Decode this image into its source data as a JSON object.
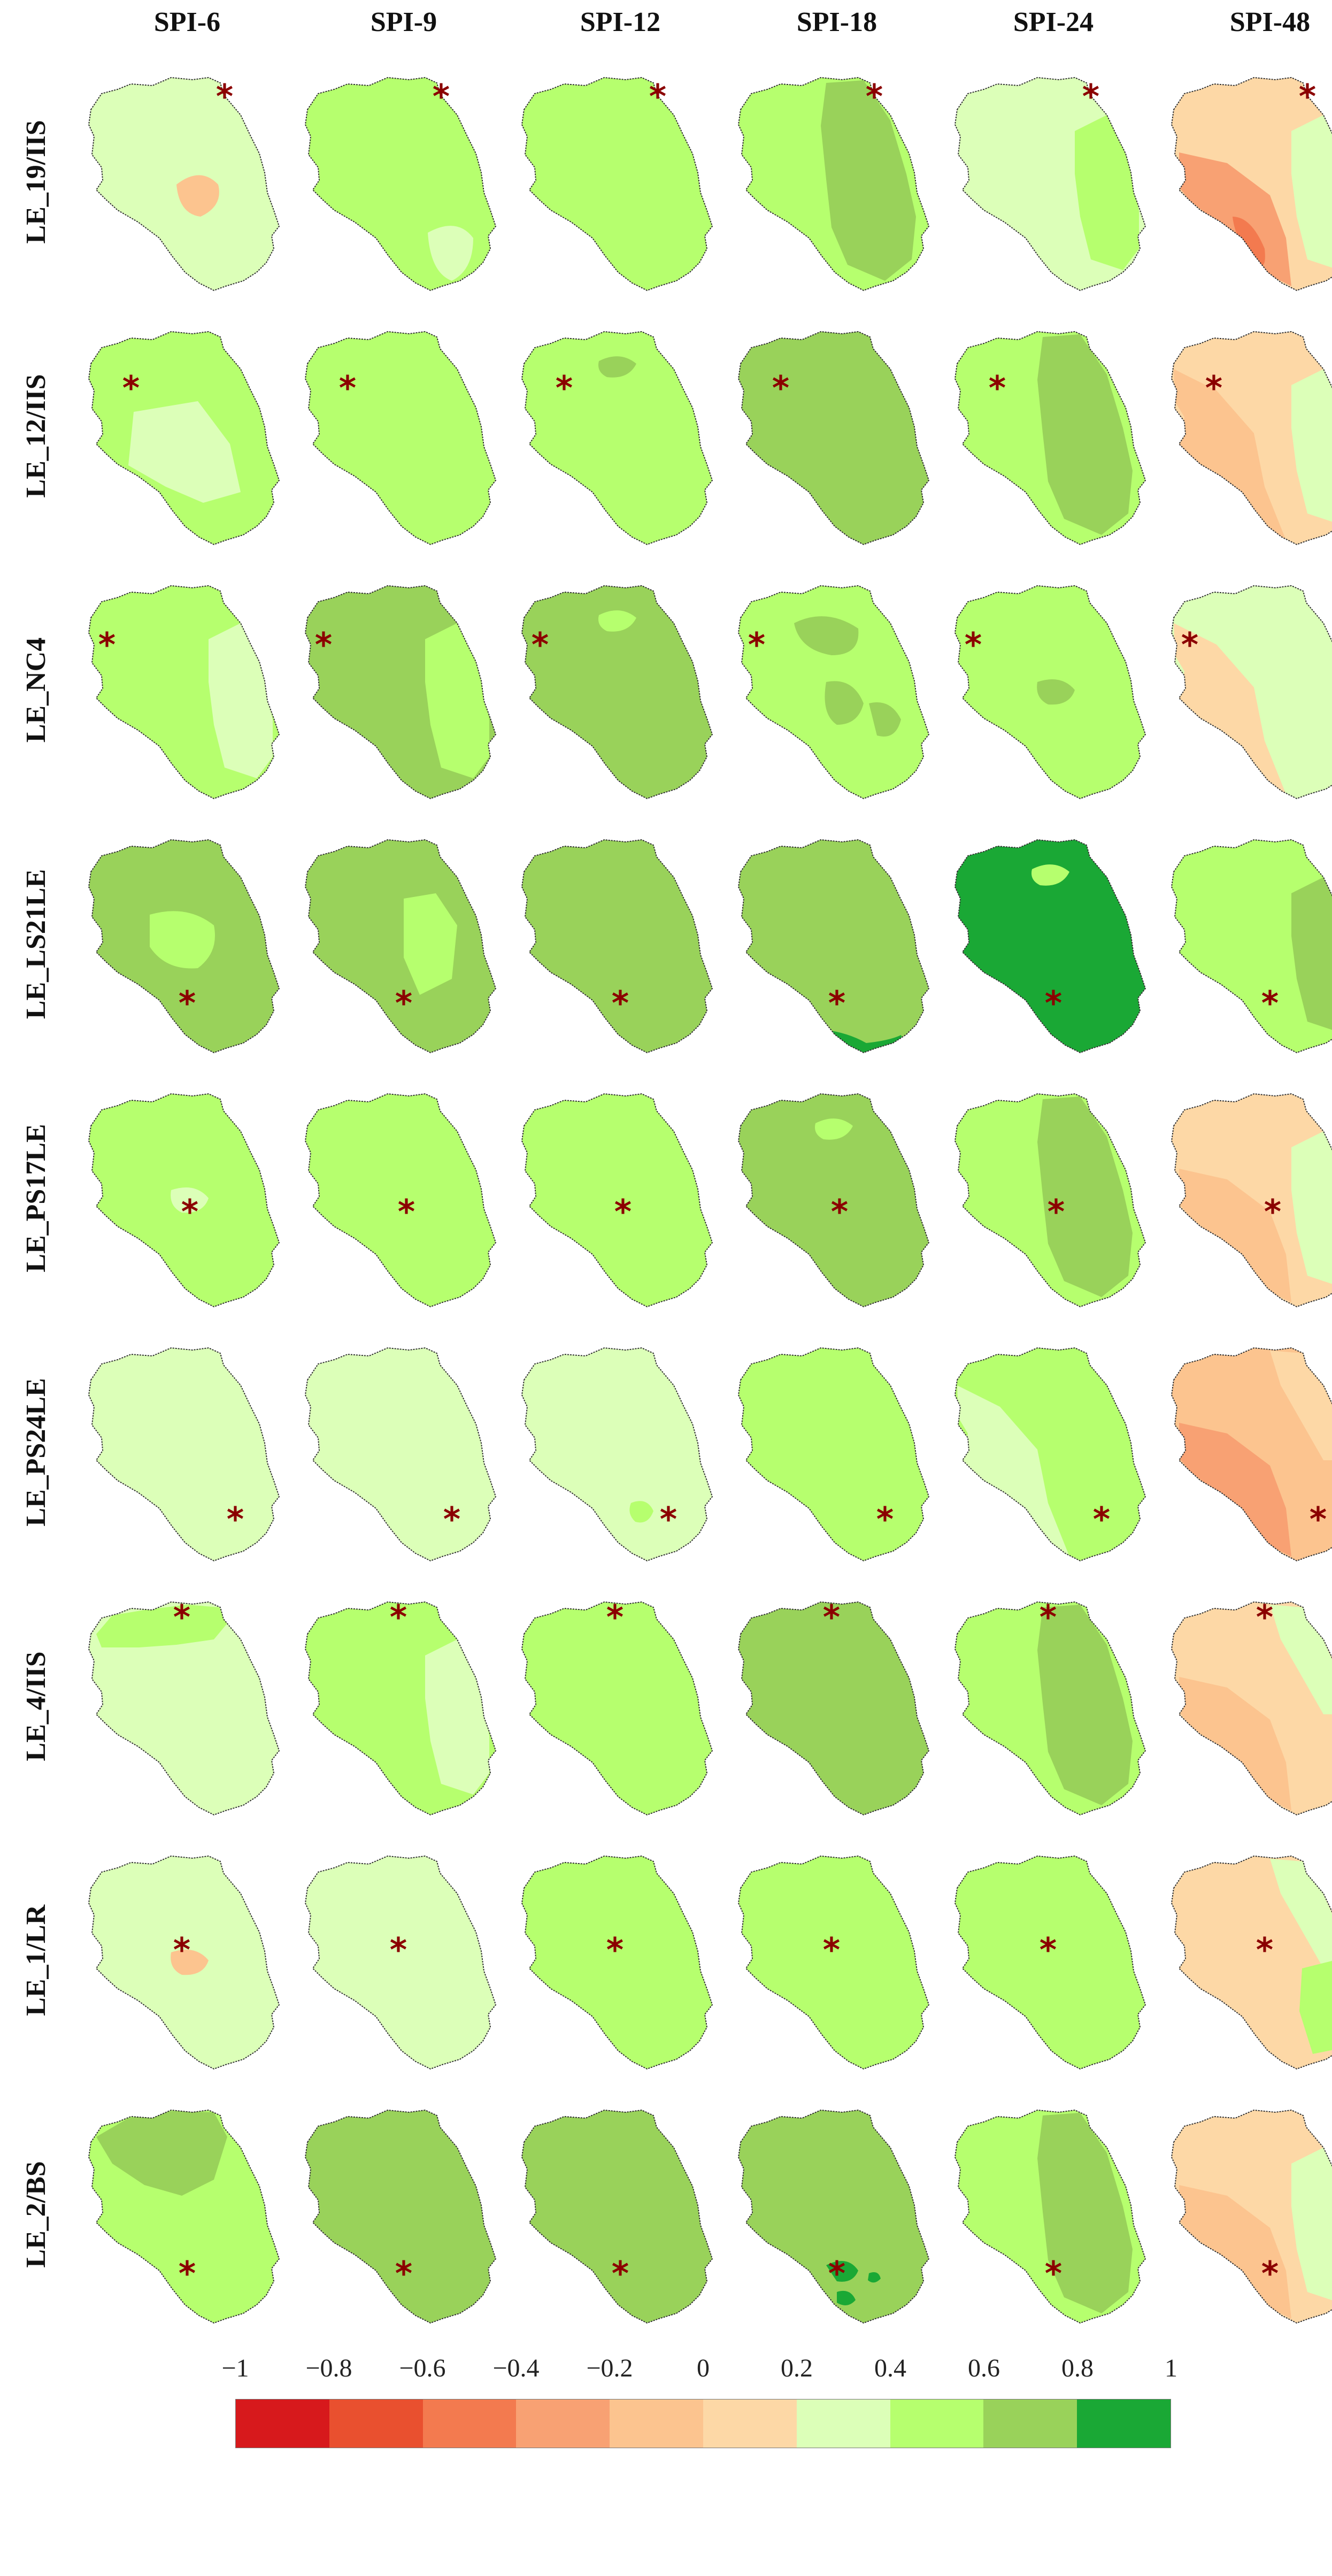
{
  "columns": [
    "SPI-6",
    "SPI-9",
    "SPI-12",
    "SPI-18",
    "SPI-24",
    "SPI-48"
  ],
  "rows": [
    {
      "label": "LE_19/IIS",
      "marker": "north-east",
      "panels": [
        {
          "base": 0.3,
          "patches": [
            {
              "value": -0.1,
              "where": "east-center"
            }
          ]
        },
        {
          "base": 0.5,
          "patches": [
            {
              "value": 0.3,
              "where": "south"
            }
          ]
        },
        {
          "base": 0.5,
          "patches": []
        },
        {
          "base": 0.5,
          "patches": [
            {
              "value": 0.7,
              "where": "central-band"
            }
          ]
        },
        {
          "base": 0.3,
          "patches": [
            {
              "value": 0.5,
              "where": "east"
            }
          ]
        },
        {
          "base": 0.1,
          "patches": [
            {
              "value": -0.3,
              "where": "south-west"
            },
            {
              "value": -0.5,
              "where": "south-west-tip"
            },
            {
              "value": 0.3,
              "where": "east"
            }
          ]
        }
      ]
    },
    {
      "label": "LE_12/IIS",
      "marker": "north-west",
      "panels": [
        {
          "base": 0.5,
          "patches": [
            {
              "value": 0.3,
              "where": "center-south"
            }
          ]
        },
        {
          "base": 0.5,
          "patches": []
        },
        {
          "base": 0.5,
          "patches": [
            {
              "value": 0.7,
              "where": "north-spot"
            }
          ]
        },
        {
          "base": 0.7,
          "patches": []
        },
        {
          "base": 0.5,
          "patches": [
            {
              "value": 0.7,
              "where": "central-band"
            }
          ]
        },
        {
          "base": 0.1,
          "patches": [
            {
              "value": -0.1,
              "where": "west"
            },
            {
              "value": 0.3,
              "where": "east"
            }
          ]
        }
      ]
    },
    {
      "label": "LE_NC4",
      "marker": "west",
      "panels": [
        {
          "base": 0.5,
          "patches": [
            {
              "value": 0.3,
              "where": "east"
            }
          ]
        },
        {
          "base": 0.7,
          "patches": [
            {
              "value": 0.5,
              "where": "east"
            }
          ]
        },
        {
          "base": 0.7,
          "patches": [
            {
              "value": 0.5,
              "where": "north-spot"
            }
          ]
        },
        {
          "base": 0.5,
          "patches": [
            {
              "value": 0.7,
              "where": "scattered"
            }
          ]
        },
        {
          "base": 0.5,
          "patches": [
            {
              "value": 0.7,
              "where": "center-spot"
            }
          ]
        },
        {
          "base": 0.3,
          "patches": [
            {
              "value": 0.1,
              "where": "west"
            }
          ]
        }
      ]
    },
    {
      "label": "LE_LS21LE",
      "marker": "south-center",
      "panels": [
        {
          "base": 0.7,
          "patches": [
            {
              "value": 0.5,
              "where": "center"
            }
          ]
        },
        {
          "base": 0.7,
          "patches": [
            {
              "value": 0.5,
              "where": "center-east"
            }
          ]
        },
        {
          "base": 0.7,
          "patches": []
        },
        {
          "base": 0.7,
          "patches": [
            {
              "value": 0.9,
              "where": "south-edge"
            }
          ]
        },
        {
          "base": 0.9,
          "patches": [
            {
              "value": 0.5,
              "where": "north-spot"
            }
          ]
        },
        {
          "base": 0.5,
          "patches": [
            {
              "value": 0.7,
              "where": "east"
            }
          ]
        }
      ]
    },
    {
      "label": "LE_PS17LE",
      "marker": "center",
      "panels": [
        {
          "base": 0.5,
          "patches": [
            {
              "value": 0.3,
              "where": "center-spot"
            }
          ]
        },
        {
          "base": 0.5,
          "patches": []
        },
        {
          "base": 0.5,
          "patches": []
        },
        {
          "base": 0.7,
          "patches": [
            {
              "value": 0.5,
              "where": "north-spot"
            }
          ]
        },
        {
          "base": 0.5,
          "patches": [
            {
              "value": 0.7,
              "where": "central-band"
            }
          ]
        },
        {
          "base": 0.1,
          "patches": [
            {
              "value": -0.1,
              "where": "south-west"
            },
            {
              "value": 0.3,
              "where": "east"
            }
          ]
        }
      ]
    },
    {
      "label": "LE_PS24LE",
      "marker": "south-east",
      "panels": [
        {
          "base": 0.3,
          "patches": []
        },
        {
          "base": 0.3,
          "patches": []
        },
        {
          "base": 0.3,
          "patches": [
            {
              "value": 0.5,
              "where": "south-spot"
            }
          ]
        },
        {
          "base": 0.5,
          "patches": []
        },
        {
          "base": 0.5,
          "patches": [
            {
              "value": 0.3,
              "where": "west"
            }
          ]
        },
        {
          "base": -0.1,
          "patches": [
            {
              "value": -0.3,
              "where": "south-west"
            },
            {
              "value": 0.1,
              "where": "north-east"
            }
          ]
        }
      ]
    },
    {
      "label": "LE_4/IIS",
      "marker": "north",
      "panels": [
        {
          "base": 0.3,
          "patches": [
            {
              "value": 0.5,
              "where": "north-edge"
            }
          ]
        },
        {
          "base": 0.5,
          "patches": [
            {
              "value": 0.3,
              "where": "east"
            }
          ]
        },
        {
          "base": 0.5,
          "patches": []
        },
        {
          "base": 0.7,
          "patches": []
        },
        {
          "base": 0.5,
          "patches": [
            {
              "value": 0.7,
              "where": "central-band"
            }
          ]
        },
        {
          "base": 0.1,
          "patches": [
            {
              "value": -0.1,
              "where": "south-west"
            },
            {
              "value": 0.3,
              "where": "north-east"
            }
          ]
        }
      ]
    },
    {
      "label": "LE_1/LR",
      "marker": "north-center",
      "panels": [
        {
          "base": 0.3,
          "patches": [
            {
              "value": -0.1,
              "where": "center-spot"
            }
          ]
        },
        {
          "base": 0.3,
          "patches": []
        },
        {
          "base": 0.5,
          "patches": []
        },
        {
          "base": 0.5,
          "patches": []
        },
        {
          "base": 0.5,
          "patches": []
        },
        {
          "base": 0.1,
          "patches": [
            {
              "value": 0.3,
              "where": "north-east"
            },
            {
              "value": 0.5,
              "where": "south-east"
            }
          ]
        }
      ]
    },
    {
      "label": "LE_2/BS",
      "marker": "south-center",
      "panels": [
        {
          "base": 0.5,
          "patches": [
            {
              "value": 0.7,
              "where": "north"
            }
          ]
        },
        {
          "base": 0.7,
          "patches": []
        },
        {
          "base": 0.7,
          "patches": []
        },
        {
          "base": 0.7,
          "patches": [
            {
              "value": 0.9,
              "where": "south-spots"
            }
          ]
        },
        {
          "base": 0.5,
          "patches": [
            {
              "value": 0.7,
              "where": "central-band"
            }
          ]
        },
        {
          "base": 0.1,
          "patches": [
            {
              "value": -0.1,
              "where": "south-west"
            },
            {
              "value": 0.3,
              "where": "east"
            }
          ]
        }
      ]
    }
  ],
  "legend": {
    "tick_labels": [
      "−1",
      "−0.8",
      "−0.6",
      "−0.4",
      "−0.2",
      "0",
      "0.2",
      "0.4",
      "0.6",
      "0.8",
      "1"
    ],
    "bins": [
      -1,
      -0.8,
      -0.6,
      -0.4,
      -0.2,
      0,
      0.2,
      0.4,
      0.6,
      0.8,
      1
    ],
    "colors": [
      "#d7191c",
      "#e9502f",
      "#f37a4f",
      "#f8a173",
      "#fcc48f",
      "#fdd8a6",
      "#dcffb8",
      "#b6ff6e",
      "#99d25a",
      "#1aa835"
    ]
  },
  "marker_symbol": "*",
  "marker_color": "#8b0000"
}
